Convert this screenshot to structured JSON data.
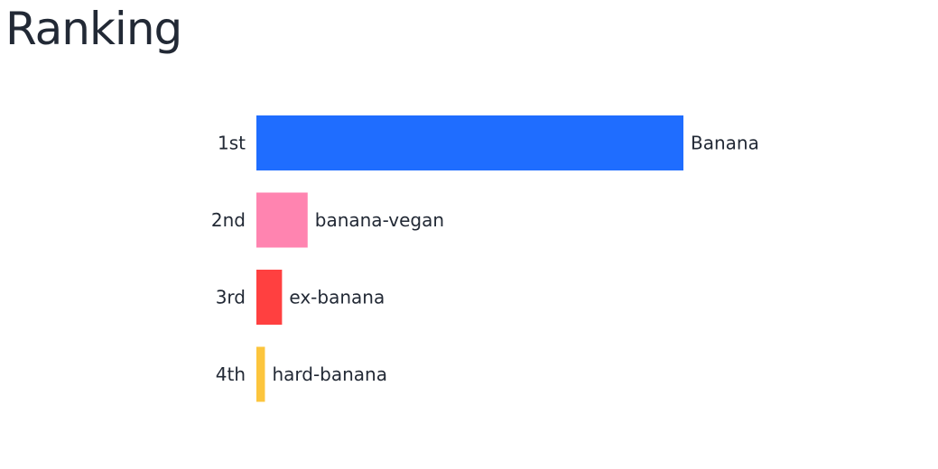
{
  "title": "Ranking",
  "chart_data": {
    "type": "bar",
    "orientation": "horizontal",
    "title": "Ranking",
    "xlabel": "",
    "ylabel": "",
    "categories": [
      "1st",
      "2nd",
      "3rd",
      "4th"
    ],
    "series": [
      {
        "labels": [
          "Banana",
          "banana-vegan",
          "ex-banana",
          "hard-banana"
        ],
        "values": [
          100,
          12,
          6,
          2
        ],
        "colors": [
          "#1f6dff",
          "#ff84b0",
          "#ff4040",
          "#fcc53d"
        ]
      }
    ],
    "xlim": [
      0,
      100
    ],
    "grid": false,
    "legend": "none"
  }
}
